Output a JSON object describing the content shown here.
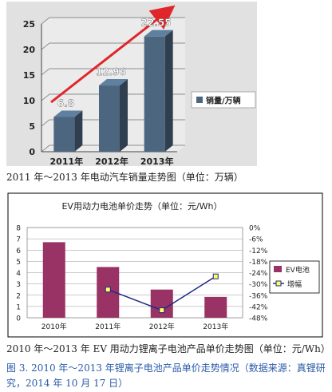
{
  "chart_data": [
    {
      "type": "bar",
      "categories": [
        "2011年",
        "2012年",
        "2013年"
      ],
      "values": [
        6.8,
        12.96,
        22.55
      ],
      "value_labels": [
        "6.8",
        "12.96",
        "22.55"
      ],
      "legend": [
        "销量/万辆"
      ],
      "legend_position": "right",
      "ylim": [
        0,
        25
      ],
      "yticks": [
        "0",
        "5",
        "10",
        "15",
        "20",
        "25"
      ],
      "grid": true,
      "bar_color": "#4d6680",
      "label_color": "#ffffff",
      "arrow_color": "#e0262a",
      "background": "#e1e1e1"
    },
    {
      "type": "bar",
      "title": "EV用动力电池单价走势（单位：元/Wh）",
      "categories": [
        "2010年",
        "2011年",
        "2012年",
        "2013年"
      ],
      "series": [
        {
          "name": "EV电池",
          "axis": "left",
          "kind": "bar",
          "values": [
            6.7,
            4.5,
            2.5,
            1.85
          ],
          "color": "#993366"
        },
        {
          "name": "增幅",
          "axis": "right",
          "kind": "line",
          "values": [
            null,
            -33,
            -44,
            -26
          ],
          "color": "#1f2a80",
          "marker_color": "#ffff66"
        }
      ],
      "ylim_left": [
        0,
        8
      ],
      "yticks_left": [
        "0",
        "1",
        "2",
        "3",
        "4",
        "5",
        "6",
        "7",
        "8"
      ],
      "ylim_right": [
        -48,
        0
      ],
      "yticks_right": [
        "0%",
        "-6%",
        "-12%",
        "-18%",
        "-24%",
        "-30%",
        "-36%",
        "-42%",
        "-48%"
      ],
      "legend_position": "right",
      "grid": true
    }
  ],
  "captions": {
    "chart1": "2011 年～2013 年电动汽车销量走势图（单位：万辆）",
    "chart2": "2010 年～2013 年 EV 用动力锂离子电池产品单价走势图（单位：元/Wh）",
    "figure": "图 3. 2010 年～2013 年锂离子电池产品单价走势情况（数据来源：真锂研究，2014 年 10 月 17 日）"
  }
}
